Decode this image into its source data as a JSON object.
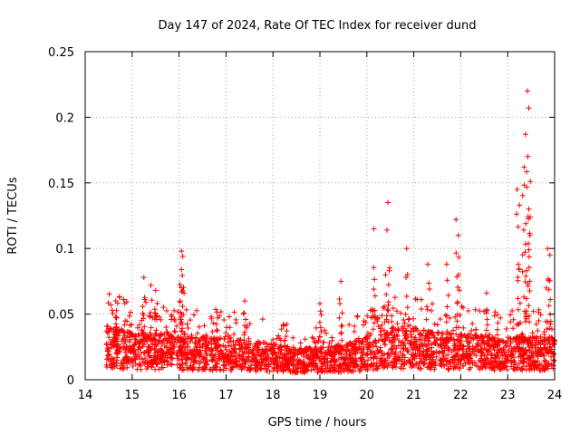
{
  "chart_data": {
    "type": "scatter",
    "title": "Day 147 of 2024, Rate Of TEC Index for receiver dund",
    "xlabel": "GPS time / hours",
    "ylabel": "ROTI / TECUs",
    "xlim": [
      14,
      24
    ],
    "ylim": [
      0,
      0.25
    ],
    "x_ticks": [
      14,
      15,
      16,
      17,
      18,
      19,
      20,
      21,
      22,
      23,
      24
    ],
    "x_tick_labels": [
      "14",
      "15",
      "16",
      "17",
      "18",
      "19",
      "20",
      "21",
      "22",
      "23",
      "24"
    ],
    "y_ticks": [
      0,
      0.05,
      0.1,
      0.15,
      0.2,
      0.25
    ],
    "y_tick_labels": [
      "0",
      "0.05",
      "0.1",
      "0.15",
      "0.2",
      "0.25"
    ],
    "grid": true,
    "marker": "+",
    "series_color": "#ff0000",
    "data_start_hour": 14.45,
    "baseline_hourly_profile": {
      "hours": [
        14.5,
        15,
        15.5,
        16,
        16.5,
        17,
        17.5,
        18,
        18.5,
        19,
        19.5,
        20,
        20.5,
        21,
        21.5,
        22,
        22.5,
        23,
        23.5,
        24
      ],
      "typical_roti": [
        0.025,
        0.022,
        0.022,
        0.02,
        0.02,
        0.02,
        0.018,
        0.017,
        0.015,
        0.015,
        0.016,
        0.02,
        0.024,
        0.024,
        0.022,
        0.022,
        0.02,
        0.02,
        0.02,
        0.02
      ]
    },
    "peaks": [
      {
        "x": 23.42,
        "y": 0.22
      },
      {
        "x": 23.45,
        "y": 0.207
      },
      {
        "x": 23.38,
        "y": 0.187
      },
      {
        "x": 23.43,
        "y": 0.17
      },
      {
        "x": 23.35,
        "y": 0.162
      },
      {
        "x": 23.2,
        "y": 0.145
      },
      {
        "x": 23.25,
        "y": 0.133
      },
      {
        "x": 23.45,
        "y": 0.13
      },
      {
        "x": 20.45,
        "y": 0.135
      },
      {
        "x": 20.15,
        "y": 0.115
      },
      {
        "x": 21.9,
        "y": 0.122
      },
      {
        "x": 21.95,
        "y": 0.11
      },
      {
        "x": 16.05,
        "y": 0.098
      },
      {
        "x": 16.08,
        "y": 0.094
      },
      {
        "x": 16.05,
        "y": 0.084
      },
      {
        "x": 23.85,
        "y": 0.1
      },
      {
        "x": 23.9,
        "y": 0.095
      },
      {
        "x": 20.85,
        "y": 0.1
      },
      {
        "x": 21.7,
        "y": 0.088
      },
      {
        "x": 21.3,
        "y": 0.088
      },
      {
        "x": 15.25,
        "y": 0.078
      },
      {
        "x": 15.4,
        "y": 0.072
      },
      {
        "x": 15.5,
        "y": 0.068
      },
      {
        "x": 19.45,
        "y": 0.075
      },
      {
        "x": 20.4,
        "y": 0.08
      },
      {
        "x": 22.55,
        "y": 0.066
      },
      {
        "x": 14.65,
        "y": 0.06
      },
      {
        "x": 17.4,
        "y": 0.06
      },
      {
        "x": 19.0,
        "y": 0.058
      }
    ]
  }
}
